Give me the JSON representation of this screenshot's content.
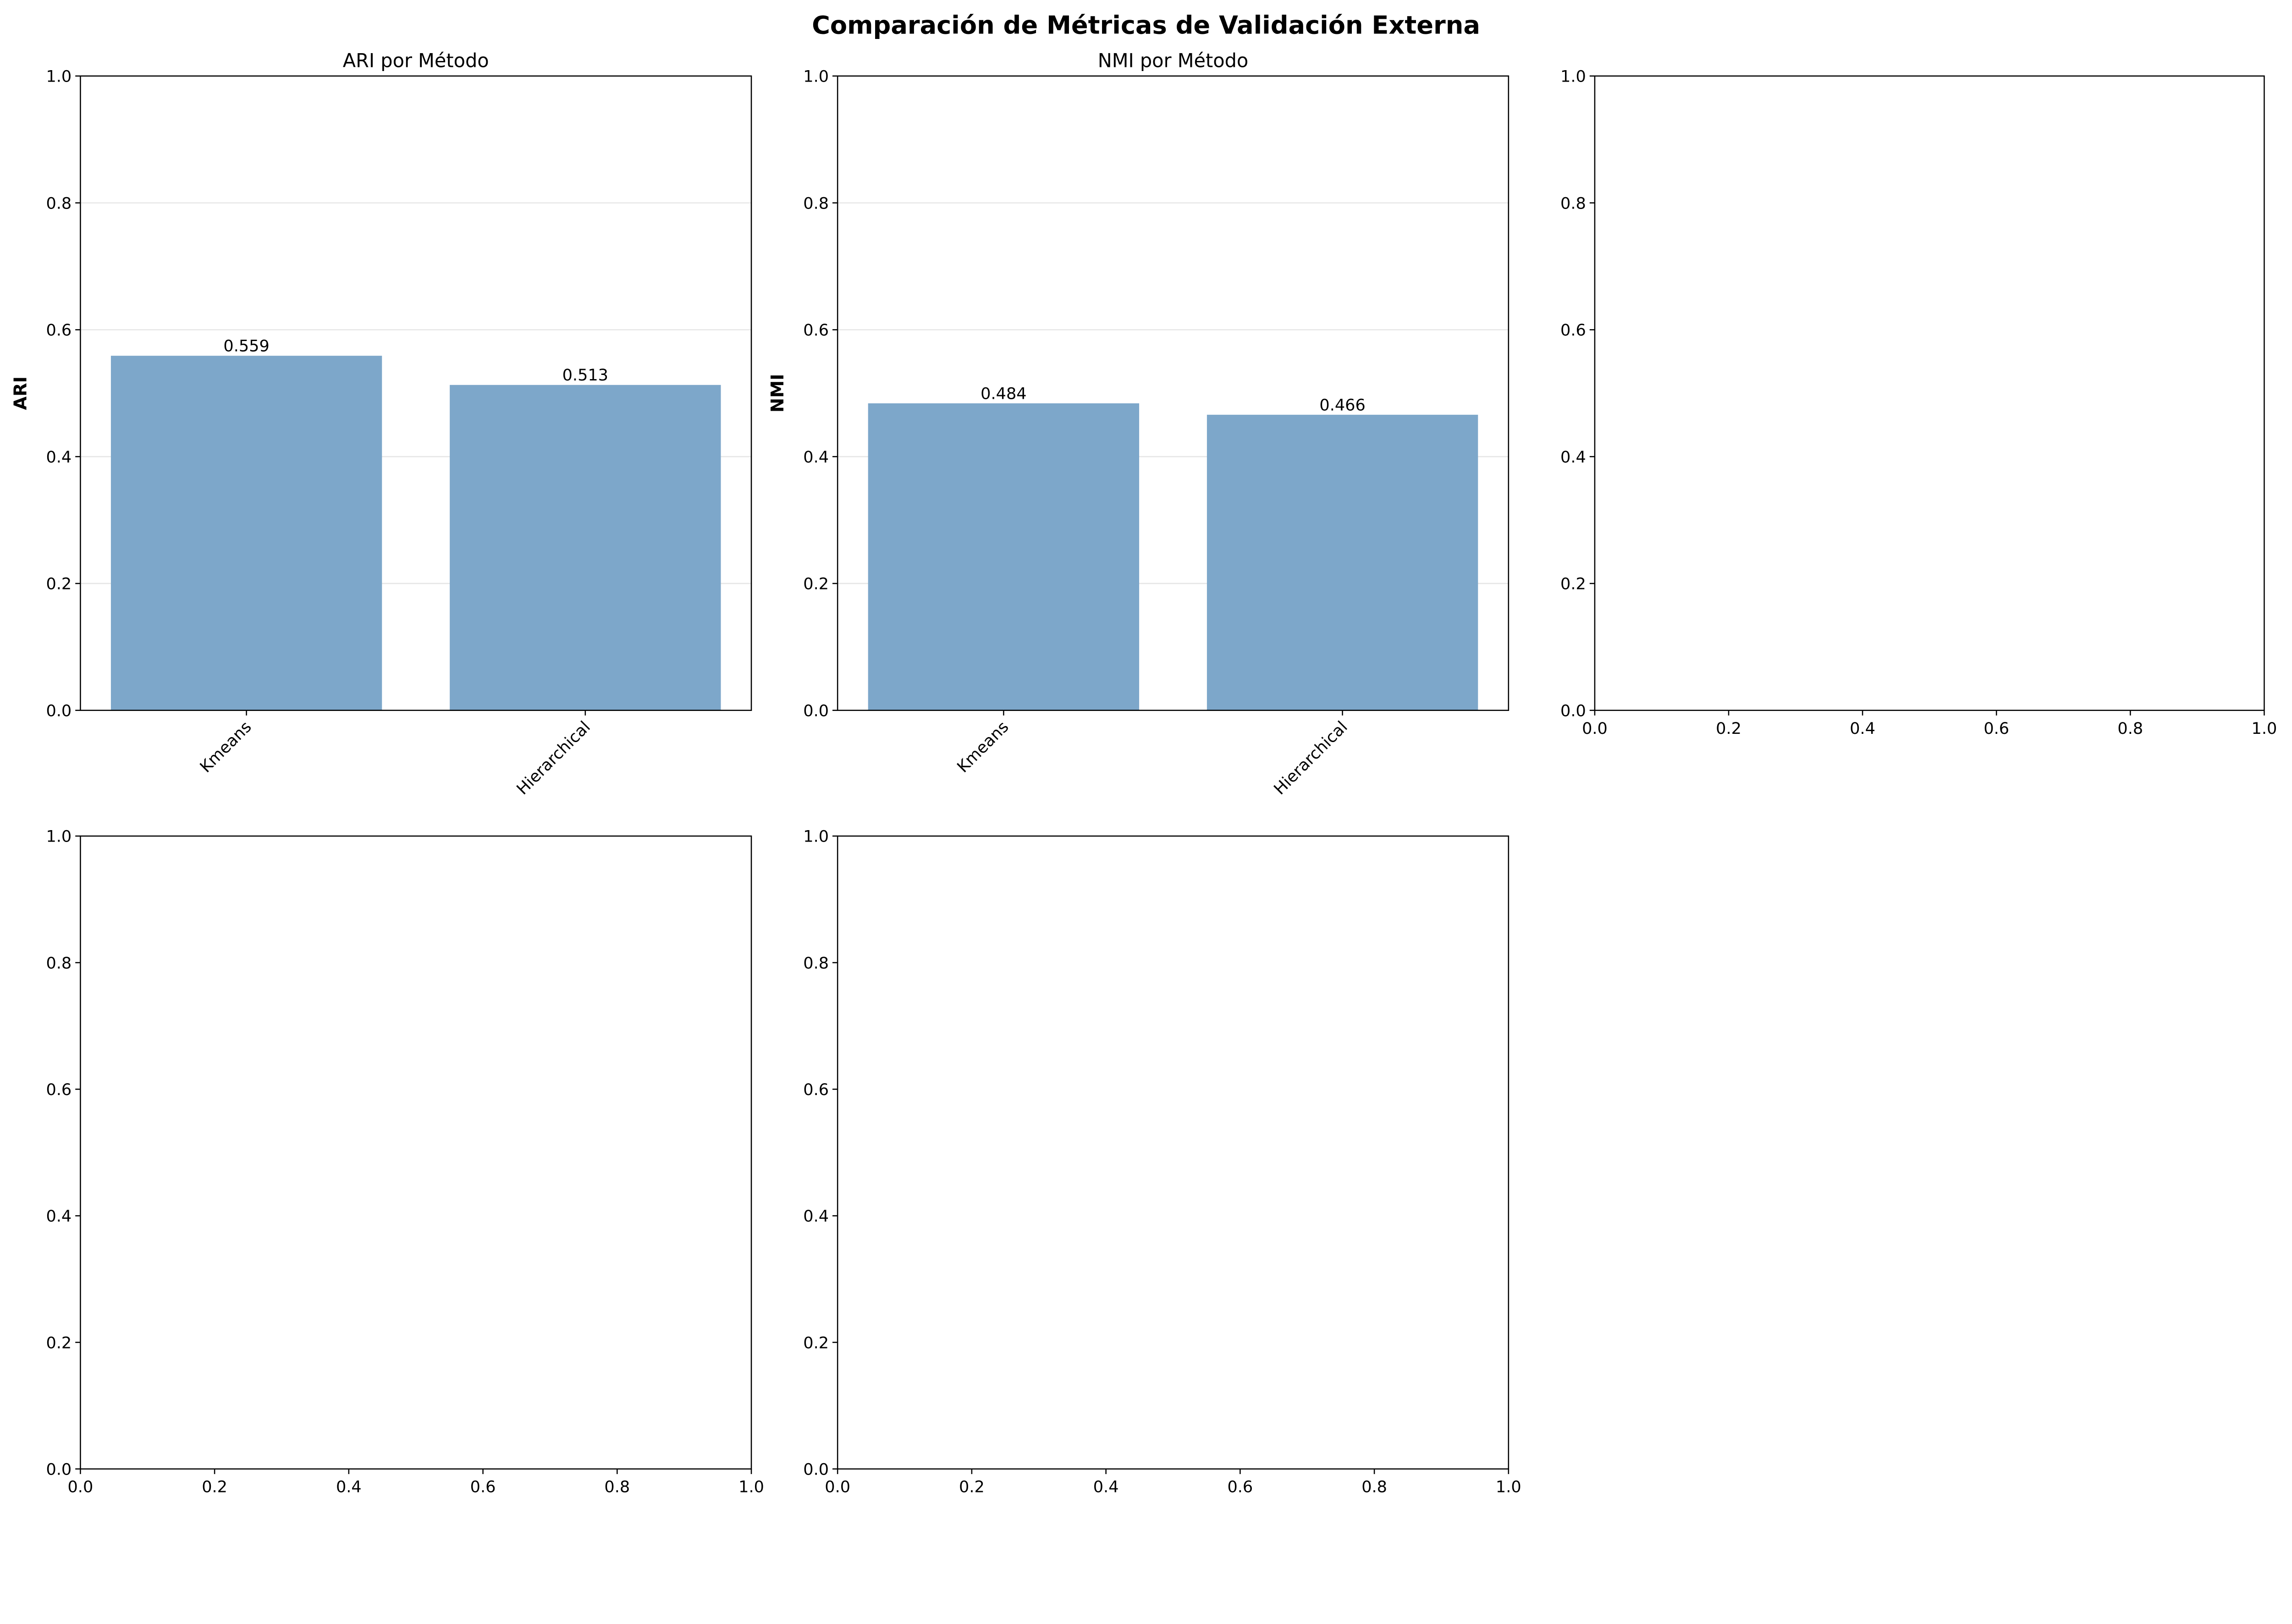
{
  "figure": {
    "suptitle": "Comparación de Métricas de Validación Externa"
  },
  "chart_data": [
    {
      "type": "bar",
      "title": "ARI por Método",
      "ylabel": "ARI",
      "xlabel": "",
      "categories": [
        "Kmeans",
        "Hierarchical"
      ],
      "values": [
        0.559,
        0.513
      ],
      "data_labels": [
        "0.559",
        "0.513"
      ],
      "ylim": [
        0,
        1
      ],
      "yticks": [
        "0.0",
        "0.2",
        "0.4",
        "0.6",
        "0.8",
        "1.0"
      ],
      "grid": "y",
      "color": "#7da7ca",
      "xtick_rotation": 45
    },
    {
      "type": "bar",
      "title": "NMI por Método",
      "ylabel": "NMI",
      "xlabel": "",
      "categories": [
        "Kmeans",
        "Hierarchical"
      ],
      "values": [
        0.484,
        0.466
      ],
      "data_labels": [
        "0.484",
        "0.466"
      ],
      "ylim": [
        0,
        1
      ],
      "yticks": [
        "0.0",
        "0.2",
        "0.4",
        "0.6",
        "0.8",
        "1.0"
      ],
      "grid": "y",
      "color": "#7da7ca",
      "xtick_rotation": 45
    },
    {
      "type": "empty",
      "xlim": [
        0,
        1
      ],
      "ylim": [
        0,
        1
      ],
      "xticks": [
        "0.0",
        "0.2",
        "0.4",
        "0.6",
        "0.8",
        "1.0"
      ],
      "yticks": [
        "0.0",
        "0.2",
        "0.4",
        "0.6",
        "0.8",
        "1.0"
      ]
    },
    {
      "type": "empty",
      "xlim": [
        0,
        1
      ],
      "ylim": [
        0,
        1
      ],
      "xticks": [
        "0.0",
        "0.2",
        "0.4",
        "0.6",
        "0.8",
        "1.0"
      ],
      "yticks": [
        "0.0",
        "0.2",
        "0.4",
        "0.6",
        "0.8",
        "1.0"
      ]
    },
    {
      "type": "empty",
      "xlim": [
        0,
        1
      ],
      "ylim": [
        0,
        1
      ],
      "xticks": [
        "0.0",
        "0.2",
        "0.4",
        "0.6",
        "0.8",
        "1.0"
      ],
      "yticks": [
        "0.0",
        "0.2",
        "0.4",
        "0.6",
        "0.8",
        "1.0"
      ]
    }
  ]
}
